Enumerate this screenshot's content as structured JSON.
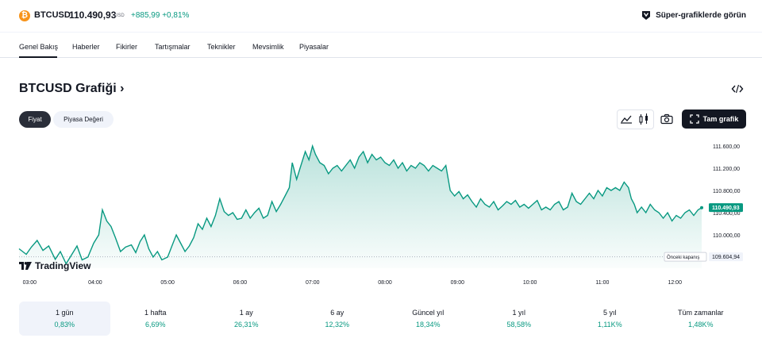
{
  "ticker": {
    "logo_glyph": "₿",
    "symbol": "BTCUSD",
    "price": "110.490,93",
    "currency": "USD",
    "change_abs": "+885,99",
    "change_pct": "+0,81%",
    "change_color": "#089981",
    "logo_color": "#f7931a"
  },
  "header_link": {
    "label": "Süper-grafiklerde görün",
    "icon": "super-chart-icon"
  },
  "nav": {
    "items": [
      "Genel Bakış",
      "Haberler",
      "Fikirler",
      "Tartışmalar",
      "Teknikler",
      "Mevsimlik",
      "Piyasalar"
    ],
    "active_index": 0
  },
  "chart_section": {
    "title": "BTCUSD Grafiği",
    "title_arrow": "›",
    "embed_icon": "code-embed-icon",
    "toggles": [
      "Fiyat",
      "Piyasa Değeri"
    ],
    "active_toggle": 0,
    "tools": [
      "area-chart-icon",
      "candlestick-icon",
      "camera-icon"
    ],
    "full_chart_label": "Tam grafik",
    "full_chart_icon": "fullscreen-icon",
    "brand": "TradingView"
  },
  "chart_data": {
    "type": "area",
    "color": "#089981",
    "x_ticks": [
      "03:00",
      "04:00",
      "05:00",
      "06:00",
      "07:00",
      "08:00",
      "09:00",
      "10:00",
      "11:00",
      "12:00"
    ],
    "y_ticks": [
      "111.600,00",
      "111.200,00",
      "110.800,00",
      "110.400,00",
      "110.000,00"
    ],
    "y_tick_values": [
      111600,
      111200,
      110800,
      110400,
      110000
    ],
    "ylim": [
      109400,
      111800
    ],
    "xlim": [
      2.95,
      12.37
    ],
    "current_price_label": "110.490,93",
    "current_price": 110490.93,
    "prev_close_label": "Önceki kapanış",
    "prev_close_value_label": "109.604,94",
    "prev_close": 109604.94,
    "points": [
      [
        2.95,
        109750
      ],
      [
        3.05,
        109650
      ],
      [
        3.12,
        109780
      ],
      [
        3.2,
        109900
      ],
      [
        3.28,
        109720
      ],
      [
        3.36,
        109800
      ],
      [
        3.45,
        109560
      ],
      [
        3.52,
        109700
      ],
      [
        3.6,
        109480
      ],
      [
        3.68,
        109650
      ],
      [
        3.75,
        109800
      ],
      [
        3.82,
        109550
      ],
      [
        3.9,
        109600
      ],
      [
        3.98,
        109850
      ],
      [
        4.05,
        110000
      ],
      [
        4.1,
        110450
      ],
      [
        4.16,
        110250
      ],
      [
        4.22,
        110150
      ],
      [
        4.28,
        109950
      ],
      [
        4.35,
        109700
      ],
      [
        4.42,
        109780
      ],
      [
        4.5,
        109820
      ],
      [
        4.56,
        109680
      ],
      [
        4.62,
        109880
      ],
      [
        4.68,
        110000
      ],
      [
        4.74,
        109750
      ],
      [
        4.8,
        109600
      ],
      [
        4.86,
        109700
      ],
      [
        4.92,
        109550
      ],
      [
        5.0,
        109600
      ],
      [
        5.06,
        109800
      ],
      [
        5.12,
        110000
      ],
      [
        5.18,
        109850
      ],
      [
        5.24,
        109700
      ],
      [
        5.3,
        109800
      ],
      [
        5.36,
        109950
      ],
      [
        5.42,
        110200
      ],
      [
        5.48,
        110100
      ],
      [
        5.54,
        110300
      ],
      [
        5.6,
        110150
      ],
      [
        5.66,
        110350
      ],
      [
        5.72,
        110650
      ],
      [
        5.78,
        110420
      ],
      [
        5.84,
        110350
      ],
      [
        5.9,
        110400
      ],
      [
        5.96,
        110280
      ],
      [
        6.02,
        110300
      ],
      [
        6.08,
        110450
      ],
      [
        6.14,
        110300
      ],
      [
        6.2,
        110400
      ],
      [
        6.26,
        110480
      ],
      [
        6.32,
        110300
      ],
      [
        6.38,
        110350
      ],
      [
        6.44,
        110600
      ],
      [
        6.5,
        110420
      ],
      [
        6.56,
        110550
      ],
      [
        6.62,
        110700
      ],
      [
        6.68,
        110850
      ],
      [
        6.72,
        111300
      ],
      [
        6.78,
        111000
      ],
      [
        6.84,
        111250
      ],
      [
        6.9,
        111500
      ],
      [
        6.95,
        111350
      ],
      [
        7.0,
        111600
      ],
      [
        7.04,
        111450
      ],
      [
        7.1,
        111300
      ],
      [
        7.16,
        111250
      ],
      [
        7.22,
        111100
      ],
      [
        7.28,
        111200
      ],
      [
        7.34,
        111250
      ],
      [
        7.4,
        111150
      ],
      [
        7.46,
        111250
      ],
      [
        7.52,
        111350
      ],
      [
        7.58,
        111200
      ],
      [
        7.64,
        111400
      ],
      [
        7.7,
        111500
      ],
      [
        7.76,
        111300
      ],
      [
        7.82,
        111450
      ],
      [
        7.88,
        111350
      ],
      [
        7.94,
        111400
      ],
      [
        8.0,
        111300
      ],
      [
        8.06,
        111250
      ],
      [
        8.12,
        111350
      ],
      [
        8.18,
        111200
      ],
      [
        8.24,
        111300
      ],
      [
        8.3,
        111150
      ],
      [
        8.36,
        111250
      ],
      [
        8.42,
        111200
      ],
      [
        8.48,
        111300
      ],
      [
        8.54,
        111250
      ],
      [
        8.6,
        111150
      ],
      [
        8.66,
        111250
      ],
      [
        8.72,
        111200
      ],
      [
        8.78,
        111150
      ],
      [
        8.84,
        111250
      ],
      [
        8.9,
        110800
      ],
      [
        8.96,
        110700
      ],
      [
        9.02,
        110780
      ],
      [
        9.08,
        110650
      ],
      [
        9.14,
        110720
      ],
      [
        9.2,
        110600
      ],
      [
        9.26,
        110500
      ],
      [
        9.32,
        110650
      ],
      [
        9.38,
        110550
      ],
      [
        9.44,
        110500
      ],
      [
        9.5,
        110600
      ],
      [
        9.56,
        110450
      ],
      [
        9.62,
        110520
      ],
      [
        9.68,
        110600
      ],
      [
        9.74,
        110550
      ],
      [
        9.8,
        110620
      ],
      [
        9.86,
        110500
      ],
      [
        9.92,
        110550
      ],
      [
        9.98,
        110480
      ],
      [
        10.04,
        110550
      ],
      [
        10.1,
        110620
      ],
      [
        10.16,
        110450
      ],
      [
        10.22,
        110500
      ],
      [
        10.28,
        110450
      ],
      [
        10.34,
        110550
      ],
      [
        10.4,
        110600
      ],
      [
        10.46,
        110450
      ],
      [
        10.52,
        110500
      ],
      [
        10.58,
        110750
      ],
      [
        10.64,
        110600
      ],
      [
        10.7,
        110550
      ],
      [
        10.76,
        110650
      ],
      [
        10.82,
        110750
      ],
      [
        10.88,
        110650
      ],
      [
        10.94,
        110800
      ],
      [
        11.0,
        110700
      ],
      [
        11.06,
        110850
      ],
      [
        11.12,
        110800
      ],
      [
        11.18,
        110850
      ],
      [
        11.24,
        110800
      ],
      [
        11.3,
        110950
      ],
      [
        11.36,
        110850
      ],
      [
        11.4,
        110650
      ],
      [
        11.44,
        110550
      ],
      [
        11.48,
        110400
      ],
      [
        11.54,
        110500
      ],
      [
        11.6,
        110400
      ],
      [
        11.66,
        110550
      ],
      [
        11.72,
        110450
      ],
      [
        11.78,
        110400
      ],
      [
        11.84,
        110300
      ],
      [
        11.9,
        110400
      ],
      [
        11.96,
        110250
      ],
      [
        12.02,
        110350
      ],
      [
        12.08,
        110300
      ],
      [
        12.14,
        110400
      ],
      [
        12.2,
        110450
      ],
      [
        12.26,
        110350
      ],
      [
        12.32,
        110450
      ],
      [
        12.37,
        110490
      ]
    ]
  },
  "periods": [
    {
      "label": "1 gün",
      "value": "0,83%"
    },
    {
      "label": "1 hafta",
      "value": "6,69%"
    },
    {
      "label": "1 ay",
      "value": "26,31%"
    },
    {
      "label": "6 ay",
      "value": "12,32%"
    },
    {
      "label": "Güncel yıl",
      "value": "18,34%"
    },
    {
      "label": "1 yıl",
      "value": "58,58%"
    },
    {
      "label": "5 yıl",
      "value": "1,11K%"
    },
    {
      "label": "Tüm zamanlar",
      "value": "1,48K%"
    }
  ],
  "active_period": 0
}
